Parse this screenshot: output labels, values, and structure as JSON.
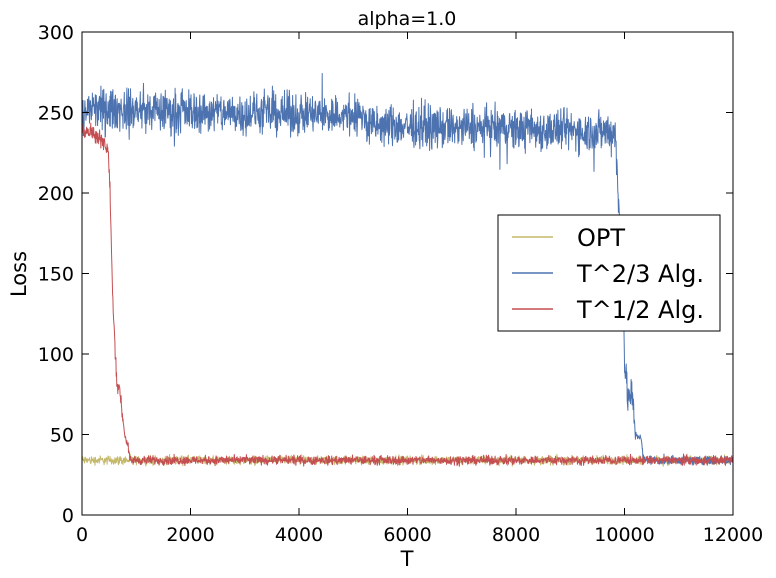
{
  "chart_data": {
    "type": "line",
    "title": "alpha=1.0",
    "xlabel": "T",
    "ylabel": "Loss",
    "xlim": [
      0,
      12000
    ],
    "ylim": [
      0,
      300
    ],
    "xticks": [
      0,
      2000,
      4000,
      6000,
      8000,
      10000,
      12000
    ],
    "yticks": [
      0,
      50,
      100,
      150,
      200,
      250,
      300
    ],
    "grid": false,
    "legend_position": "center-right",
    "series": [
      {
        "name": "OPT",
        "color": "#c4b86a",
        "x": [
          0,
          12000
        ],
        "y": [
          34,
          34
        ],
        "noise_band": 3
      },
      {
        "name": "T^2/3 Alg.",
        "color": "#4c72b0",
        "x": [
          0,
          100,
          5200,
          5250,
          9800,
          9830,
          9880,
          9950,
          10000,
          10050,
          10150,
          10200,
          10300,
          10350,
          10400,
          12000
        ],
        "y": [
          245,
          252,
          248,
          242,
          238,
          240,
          200,
          150,
          100,
          75,
          72,
          50,
          48,
          35,
          34,
          34
        ],
        "noise_band": 14
      },
      {
        "name": "T^1/2 Alg.",
        "color": "#c44e52",
        "x": [
          0,
          150,
          400,
          480,
          520,
          560,
          600,
          650,
          700,
          750,
          800,
          850,
          880,
          900,
          12000
        ],
        "y": [
          240,
          238,
          233,
          225,
          200,
          140,
          110,
          80,
          78,
          60,
          48,
          42,
          35,
          34,
          34
        ],
        "noise_band": 6
      }
    ]
  }
}
